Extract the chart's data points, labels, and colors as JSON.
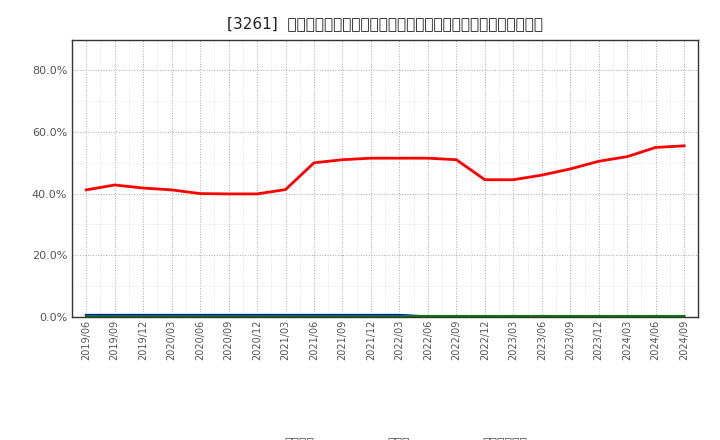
{
  "title": "[3261]  自己資本、のれん、繰延税金資産の総資産に対する比率の推移",
  "x_labels": [
    "2019/06",
    "2019/09",
    "2019/12",
    "2020/03",
    "2020/06",
    "2020/09",
    "2020/12",
    "2021/03",
    "2021/06",
    "2021/09",
    "2021/12",
    "2022/03",
    "2022/06",
    "2022/09",
    "2022/12",
    "2023/03",
    "2023/06",
    "2023/09",
    "2023/12",
    "2024/03",
    "2024/06",
    "2024/09"
  ],
  "equity_ratio": [
    0.412,
    0.428,
    0.418,
    0.412,
    0.4,
    0.399,
    0.399,
    0.413,
    0.5,
    0.51,
    0.515,
    0.515,
    0.515,
    0.51,
    0.445,
    0.445,
    0.46,
    0.48,
    0.505,
    0.52,
    0.55,
    0.555
  ],
  "noren_ratio": [
    0.005,
    0.005,
    0.005,
    0.005,
    0.005,
    0.005,
    0.005,
    0.005,
    0.005,
    0.005,
    0.005,
    0.005,
    0.0,
    0.0,
    0.0,
    0.0,
    0.0,
    0.0,
    0.0,
    0.0,
    0.0,
    0.0
  ],
  "deferred_ratio": [
    0.002,
    0.002,
    0.002,
    0.002,
    0.002,
    0.002,
    0.002,
    0.002,
    0.002,
    0.002,
    0.002,
    0.002,
    0.002,
    0.002,
    0.002,
    0.002,
    0.002,
    0.002,
    0.002,
    0.002,
    0.002,
    0.002
  ],
  "equity_color": "#ff0000",
  "noren_color": "#0000ff",
  "deferred_color": "#008000",
  "legend_labels": [
    "自己資本",
    "のれん",
    "繰延税金資産"
  ],
  "ylim": [
    0.0,
    0.9
  ],
  "yticks": [
    0.0,
    0.2,
    0.4,
    0.6,
    0.8
  ],
  "background_color": "#ffffff",
  "plot_bg_color": "#ffffff",
  "grid_color": "#aaaaaa",
  "title_fontsize": 11,
  "tick_color": "#555555",
  "spine_color": "#333333"
}
